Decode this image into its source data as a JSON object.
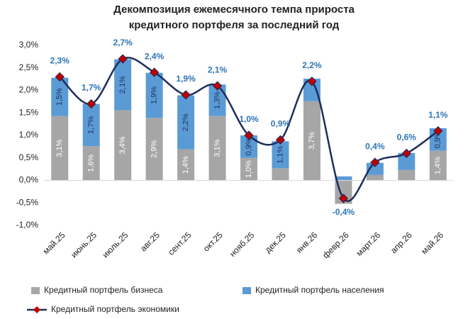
{
  "chart_data": {
    "type": "stacked-bar-line",
    "title": [
      "Декомпозиция ежемесячного темпа прироста",
      "кредитного портфеля за последний год"
    ],
    "categories": [
      "май.25",
      "июнь.25",
      "июль.25",
      "авг.25",
      "сент.25",
      "окт.25",
      "нояб.25",
      "дек.25",
      "янв.26",
      "февр.26",
      "март.26",
      "апр.26",
      "май.26"
    ],
    "series": [
      {
        "name": "Кредитный портфель бизнеса",
        "color": "#a6a6a6",
        "kind": "bar",
        "values": [
          1.43,
          0.76,
          1.56,
          1.39,
          0.69,
          1.43,
          0.5,
          0.27,
          1.76,
          -0.52,
          0.12,
          0.23,
          0.66
        ],
        "segment_labels": [
          "3,1%",
          "1,6%",
          "3,4%",
          "2,9%",
          "1,4%",
          "3,1%",
          "1,0%",
          null,
          "3,7%",
          null,
          null,
          null,
          "1,4%"
        ]
      },
      {
        "name": "Кредитный портфель населения",
        "color": "#5b9bd5",
        "kind": "bar",
        "values": [
          0.85,
          0.94,
          1.13,
          1.0,
          1.2,
          0.7,
          0.5,
          0.6,
          0.5,
          0.09,
          0.27,
          0.38,
          0.5
        ],
        "segment_labels": [
          "1,5%",
          "1,7%",
          "2,1%",
          "1,9%",
          "2,2%",
          "1,3%",
          "0,9%",
          "1,1%",
          null,
          null,
          null,
          null,
          "0,9%"
        ]
      },
      {
        "name": "Кредитный портфель экономики",
        "color": "#1f2d5c",
        "marker_color": "#c00000",
        "kind": "line",
        "values": [
          2.3,
          1.7,
          2.7,
          2.4,
          1.9,
          2.1,
          1.0,
          0.9,
          2.2,
          -0.4,
          0.4,
          0.6,
          1.1
        ],
        "value_labels": [
          "2,3%",
          "1,7%",
          "2,7%",
          "2,4%",
          "1,9%",
          "2,1%",
          "1,0%",
          "0,9%",
          "2,2%",
          "-0,4%",
          "0,4%",
          "0,6%",
          "1,1%"
        ]
      }
    ],
    "ylim": [
      -1,
      3
    ],
    "yticks": [
      {
        "value": 3,
        "label": "3,0%"
      },
      {
        "value": 2.5,
        "label": "2,5%"
      },
      {
        "value": 2,
        "label": "2,0%"
      },
      {
        "value": 1.5,
        "label": "1,5%"
      },
      {
        "value": 1,
        "label": "1,0%"
      },
      {
        "value": 0.5,
        "label": "0,5%"
      },
      {
        "value": 0,
        "label": "0,0%"
      },
      {
        "value": -0.5,
        "label": "-0,5%"
      },
      {
        "value": -1,
        "label": "-1,0%"
      }
    ],
    "grid": false
  }
}
